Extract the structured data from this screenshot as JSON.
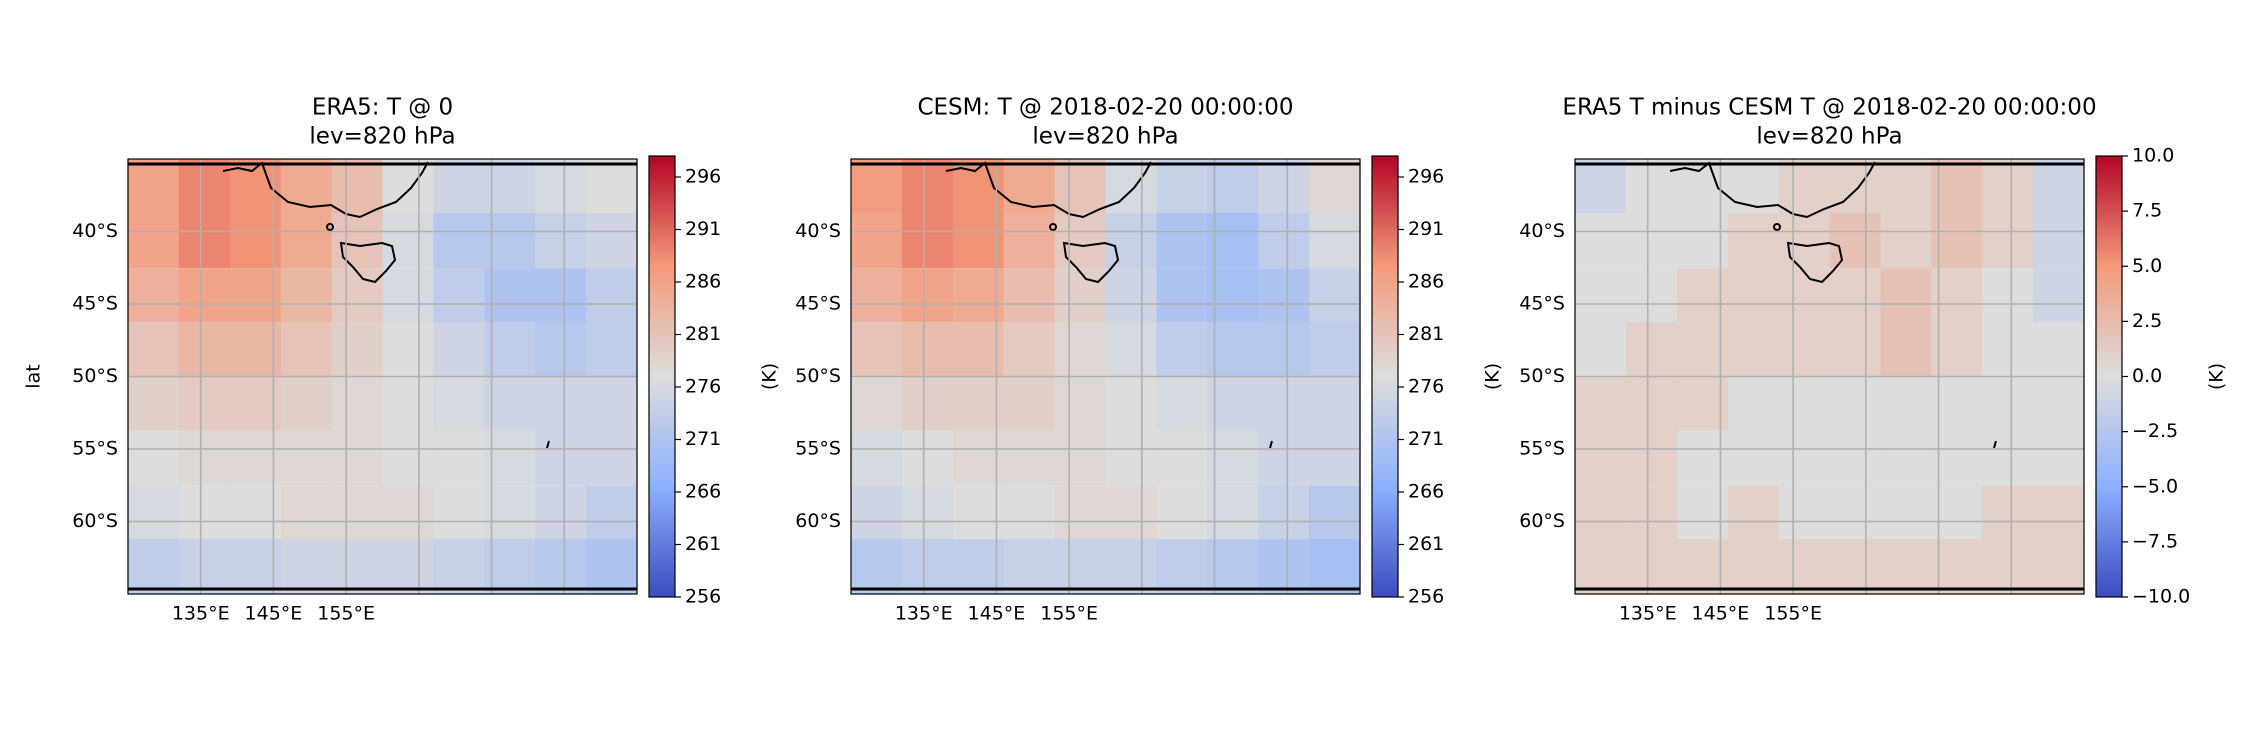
{
  "chart_data": [
    {
      "type": "heatmap",
      "title": "ERA5: T @ 0",
      "subtitle": "lev=820 hPa",
      "ylabel": "lat",
      "colorbar_label": "(K)",
      "colormap": "coolwarm",
      "grid": true,
      "xlim": [
        125,
        195
      ],
      "ylim": [
        -65,
        -35
      ],
      "xticks": [
        {
          "value": 135,
          "label": "135°E"
        },
        {
          "value": 145,
          "label": "145°E"
        },
        {
          "value": 155,
          "label": "155°E"
        }
      ],
      "xgrid": [
        165,
        175,
        185
      ],
      "yticks": [
        {
          "value": -40,
          "label": "40°S"
        },
        {
          "value": -45,
          "label": "45°S"
        },
        {
          "value": -50,
          "label": "50°S"
        },
        {
          "value": -55,
          "label": "55°S"
        },
        {
          "value": -60,
          "label": "60°S"
        }
      ],
      "clim": [
        256,
        298
      ],
      "cticks": [
        256,
        261,
        266,
        271,
        276,
        281,
        286,
        291,
        296
      ],
      "x": [
        128.5,
        135.5,
        142.5,
        149.5,
        156.5,
        163.5,
        170.5,
        177.5,
        184.5,
        191.5
      ],
      "y": [
        -36.9,
        -40.6,
        -44.4,
        -48.1,
        -51.9,
        -55.6,
        -59.4,
        -63.1
      ],
      "z": [
        [
          286,
          289,
          288,
          285,
          282,
          277,
          275,
          275,
          276,
          277
        ],
        [
          286,
          289,
          288,
          285,
          281,
          276,
          272,
          272,
          274,
          275
        ],
        [
          284,
          286,
          286,
          283,
          280,
          276,
          273,
          271,
          271,
          273
        ],
        [
          281,
          283,
          283,
          281,
          279,
          277,
          275,
          273,
          272,
          273
        ],
        [
          279,
          280,
          280,
          279,
          278,
          277,
          276,
          275,
          275,
          275
        ],
        [
          277,
          278,
          278,
          278,
          278,
          277,
          277,
          276,
          275,
          275
        ],
        [
          276,
          277,
          277,
          278,
          278,
          278,
          277,
          276,
          275,
          273
        ],
        [
          273,
          274,
          274,
          275,
          275,
          275,
          274,
          273,
          272,
          271
        ]
      ]
    },
    {
      "type": "heatmap",
      "title": "CESM: T @ 2018-02-20 00:00:00",
      "subtitle": "lev=820 hPa",
      "colorbar_label": "(K)",
      "colormap": "coolwarm",
      "grid": true,
      "xlim": [
        125,
        195
      ],
      "ylim": [
        -65,
        -35
      ],
      "xticks": [
        {
          "value": 135,
          "label": "135°E"
        },
        {
          "value": 145,
          "label": "145°E"
        },
        {
          "value": 155,
          "label": "155°E"
        }
      ],
      "xgrid": [
        165,
        175,
        185
      ],
      "yticks": [
        {
          "value": -40,
          "label": "40°S"
        },
        {
          "value": -45,
          "label": "45°S"
        },
        {
          "value": -50,
          "label": "50°S"
        },
        {
          "value": -55,
          "label": "55°S"
        },
        {
          "value": -60,
          "label": "60°S"
        }
      ],
      "clim": [
        256,
        298
      ],
      "cticks": [
        256,
        261,
        266,
        271,
        276,
        281,
        286,
        291,
        296
      ],
      "x": [
        128.5,
        135.5,
        142.5,
        149.5,
        156.5,
        163.5,
        170.5,
        177.5,
        184.5,
        191.5
      ],
      "y": [
        -36.9,
        -40.6,
        -44.4,
        -48.1,
        -51.9,
        -55.6,
        -59.4,
        -63.1
      ],
      "z": [
        [
          287,
          289,
          288,
          285,
          281,
          276,
          274,
          273,
          275,
          278
        ],
        [
          286,
          289,
          288,
          284,
          280,
          274,
          271,
          270,
          273,
          276
        ],
        [
          284,
          286,
          285,
          282,
          279,
          275,
          271,
          270,
          271,
          274
        ],
        [
          281,
          282,
          282,
          280,
          278,
          276,
          273,
          272,
          272,
          273
        ],
        [
          278,
          279,
          279,
          279,
          278,
          277,
          276,
          275,
          275,
          275
        ],
        [
          276,
          277,
          278,
          278,
          278,
          277,
          277,
          276,
          275,
          275
        ],
        [
          275,
          276,
          277,
          277,
          278,
          278,
          277,
          276,
          274,
          272
        ],
        [
          272,
          273,
          273,
          274,
          274,
          274,
          273,
          272,
          271,
          270
        ]
      ]
    },
    {
      "type": "heatmap",
      "title": "ERA5 T minus CESM T @ 2018-02-20 00:00:00",
      "subtitle": "lev=820 hPa",
      "colorbar_label": "(K)",
      "colormap": "coolwarm",
      "grid": true,
      "xlim": [
        125,
        195
      ],
      "ylim": [
        -65,
        -35
      ],
      "xticks": [
        {
          "value": 135,
          "label": "135°E"
        },
        {
          "value": 145,
          "label": "145°E"
        },
        {
          "value": 155,
          "label": "155°E"
        }
      ],
      "xgrid": [
        165,
        175,
        185
      ],
      "yticks": [
        {
          "value": -40,
          "label": "40°S"
        },
        {
          "value": -45,
          "label": "45°S"
        },
        {
          "value": -50,
          "label": "50°S"
        },
        {
          "value": -55,
          "label": "55°S"
        },
        {
          "value": -60,
          "label": "60°S"
        }
      ],
      "clim": [
        -10,
        10
      ],
      "cticks": [
        {
          "value": -10,
          "label": "−10.0"
        },
        {
          "value": -7.5,
          "label": "−7.5"
        },
        {
          "value": -5,
          "label": "−5.0"
        },
        {
          "value": -2.5,
          "label": "−2.5"
        },
        {
          "value": 0,
          "label": "0.0"
        },
        2.5,
        {
          "value": 5,
          "label": "5.0"
        },
        7.5,
        {
          "value": 10,
          "label": "10.0"
        }
      ],
      "x": [
        128.5,
        135.5,
        142.5,
        149.5,
        156.5,
        163.5,
        170.5,
        177.5,
        184.5,
        191.5
      ],
      "y": [
        -36.9,
        -40.6,
        -44.4,
        -48.1,
        -51.9,
        -55.6,
        -59.4,
        -63.1
      ],
      "z": [
        [
          -1,
          0,
          0,
          0,
          1,
          1,
          1,
          2,
          1,
          -1
        ],
        [
          0,
          0,
          0,
          1,
          1,
          2,
          1,
          2,
          1,
          -1
        ],
        [
          0,
          0,
          1,
          1,
          1,
          1,
          2,
          1,
          0,
          -1
        ],
        [
          0,
          1,
          1,
          1,
          1,
          1,
          2,
          1,
          0,
          0
        ],
        [
          1,
          1,
          1,
          0,
          0,
          0,
          0,
          0,
          0,
          0
        ],
        [
          1,
          1,
          0,
          0,
          0,
          0,
          0,
          0,
          0,
          0
        ],
        [
          1,
          1,
          0,
          1,
          0,
          0,
          0,
          0,
          1,
          1
        ],
        [
          1,
          1,
          1,
          1,
          1,
          1,
          1,
          1,
          1,
          1
        ]
      ]
    }
  ]
}
